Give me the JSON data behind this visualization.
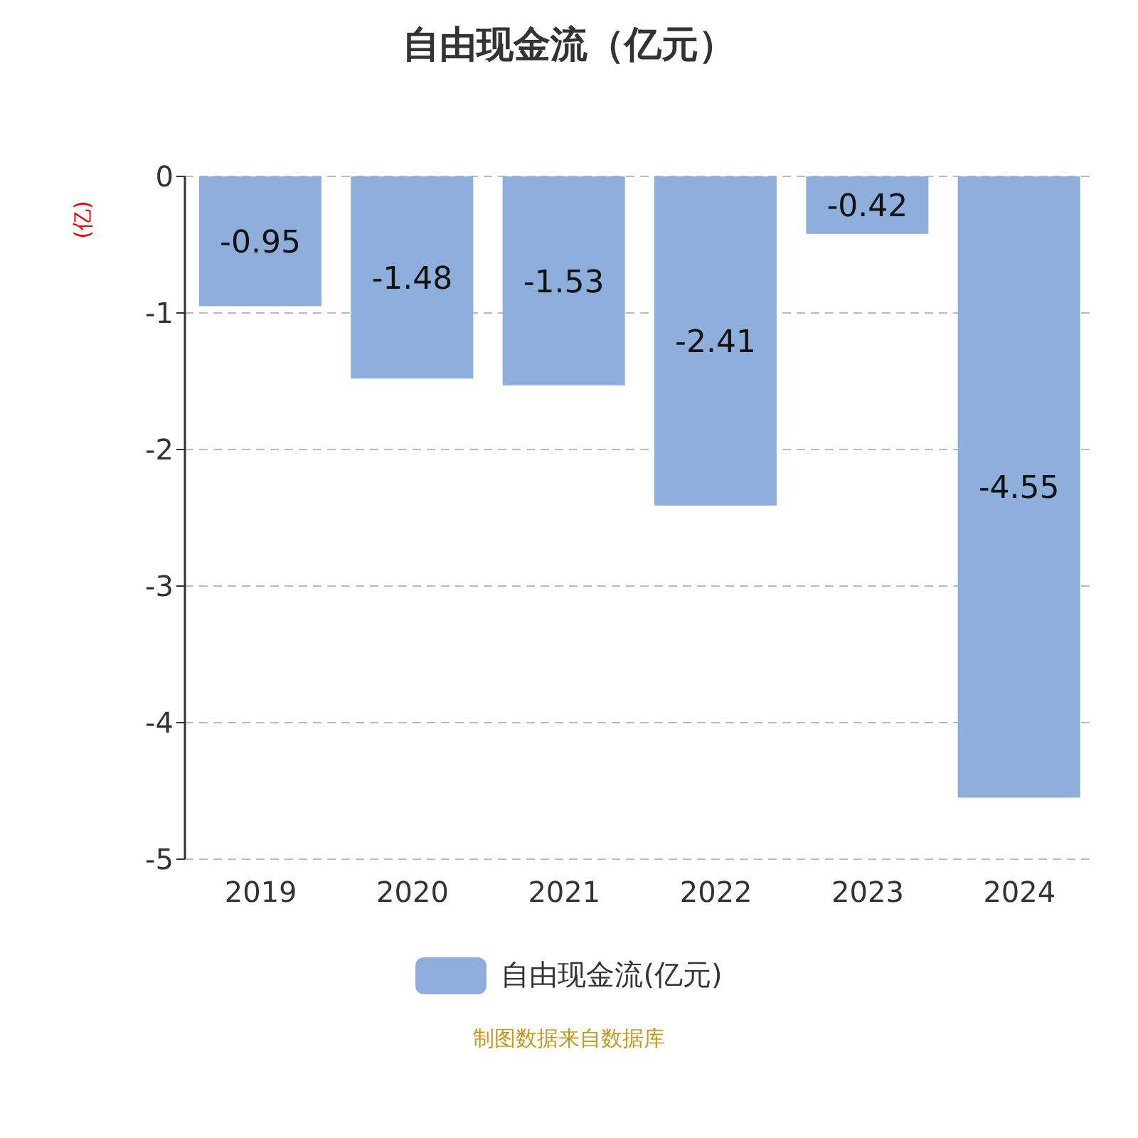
{
  "chart_data": {
    "type": "bar",
    "title": "自由现金流（亿元）",
    "ylabel": "(亿)",
    "categories": [
      "2019",
      "2020",
      "2021",
      "2022",
      "2023",
      "2024"
    ],
    "series": [
      {
        "name": "自由现金流(亿元)",
        "color": "#8eaedb",
        "values": [
          -0.95,
          -1.48,
          -1.53,
          -2.41,
          -0.42,
          -4.55
        ]
      }
    ],
    "ylim": [
      -5,
      0
    ],
    "yticks": [
      -5,
      -4,
      -3,
      -2,
      -1,
      0
    ],
    "grid": "y",
    "legend": "bottom",
    "data_labels": true,
    "annotations": [
      "制图数据来自数据库"
    ]
  }
}
